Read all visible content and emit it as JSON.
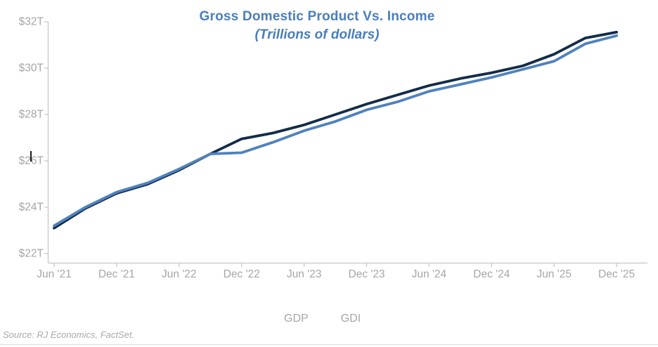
{
  "title": "Gross Domestic Product Vs. Income",
  "subtitle": "(Trillions of dollars)",
  "source": "Source: RJ Economics, FactSet.",
  "legend": [
    {
      "label": "GDP",
      "color": "#132c49"
    },
    {
      "label": "GDI",
      "color": "#4f82bd"
    }
  ],
  "colors": {
    "title_blue": "#4a7ebb",
    "axis_text_gray": "#a6a6a6",
    "axis_line_gray": "#c8c8c8",
    "gdp_line": "#132c49",
    "gdi_line": "#4f82bd"
  },
  "chart_data": {
    "type": "line",
    "title": "Gross Domestic Product Vs. Income",
    "subtitle": "(Trillions of dollars)",
    "x": [
      "Jun '21",
      "Sep '21",
      "Dec '21",
      "Mar '22",
      "Jun '22",
      "Sep '22",
      "Dec '22",
      "Mar '23",
      "Jun '23",
      "Sep '23",
      "Dec '23",
      "Mar '24",
      "Jun '24",
      "Sep '24",
      "Dec '24",
      "Mar '25",
      "Jun '25",
      "Sep '25",
      "Dec '25"
    ],
    "x_tick_labels": [
      "Jun '21",
      "Dec '21",
      "Jun '22",
      "Dec '22",
      "Jun '23",
      "Dec '23",
      "Jun '24",
      "Dec '24",
      "Jun '25",
      "Dec '25"
    ],
    "series": [
      {
        "name": "GDP",
        "color": "#132c49",
        "values": [
          23.1,
          23.95,
          24.6,
          25.0,
          25.6,
          26.3,
          26.95,
          27.2,
          27.55,
          28.0,
          28.45,
          28.85,
          29.25,
          29.55,
          29.8,
          30.1,
          30.6,
          31.3,
          31.55
        ]
      },
      {
        "name": "GDI",
        "color": "#4f82bd",
        "values": [
          23.2,
          24.0,
          24.65,
          25.05,
          25.65,
          26.3,
          26.35,
          26.8,
          27.3,
          27.7,
          28.2,
          28.55,
          29.0,
          29.3,
          29.6,
          29.95,
          30.3,
          31.05,
          31.4
        ]
      }
    ],
    "y_tick_labels": [
      "$22T",
      "$24T",
      "$26T",
      "$28T",
      "$30T",
      "$32T"
    ],
    "y_tick_values": [
      22,
      24,
      26,
      28,
      30,
      32
    ],
    "ylim": [
      21.6,
      32
    ],
    "grid": "off",
    "legend_position": "bottom",
    "ylabel": "",
    "xlabel": ""
  }
}
